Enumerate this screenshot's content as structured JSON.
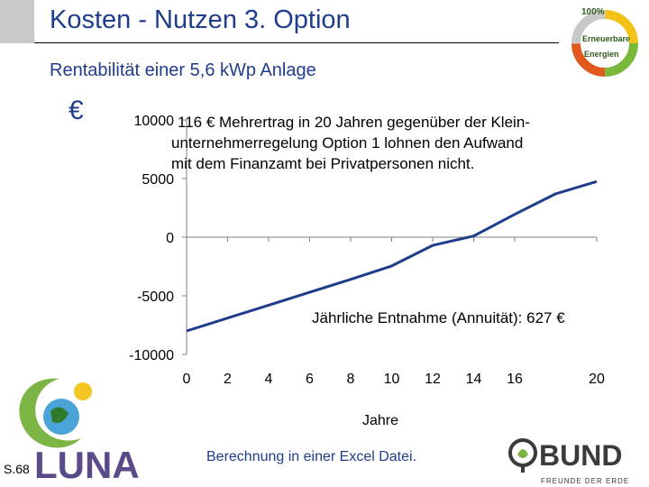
{
  "slide": {
    "title": "Kosten - Nutzen 3. Option",
    "subtitle": "Rentabilität einer 5,6 kWp Anlage",
    "currency_symbol": "€",
    "page_number": "S.68",
    "footer_note": "Berechnung in einer Excel Datei."
  },
  "logos": {
    "renewable": {
      "percent": "100%",
      "line1": "Erneuerbare",
      "line2": "Energien"
    },
    "luna": {
      "text": "LUNA"
    },
    "bund": {
      "text": "BUND",
      "tagline": "FREUNDE DER ERDE"
    }
  },
  "colors": {
    "title": "#1f3d8a",
    "series": "#1f3d8a",
    "grid": "#808080"
  },
  "chart_data": {
    "type": "line",
    "xlabel": "Jahre",
    "ylabel": "€",
    "xlim": [
      0,
      20
    ],
    "ylim": [
      -10000,
      10000
    ],
    "x_ticks": [
      0,
      2,
      4,
      6,
      8,
      10,
      12,
      14,
      16,
      20
    ],
    "y_ticks": [
      10000,
      5000,
      0,
      -5000,
      -10000
    ],
    "x_tick_labels": [
      "0",
      "2",
      "4",
      "6",
      "8",
      "10",
      "12",
      "14",
      "16",
      "20"
    ],
    "y_tick_labels": [
      "10000",
      "5000",
      "0",
      "-5000",
      "-10000"
    ],
    "grid": false,
    "series": [
      {
        "x": [
          0,
          2,
          4,
          6,
          8,
          10,
          12,
          14,
          16,
          18,
          20
        ],
        "values": [
          -8000,
          -6900,
          -5800,
          -4700,
          -3600,
          -2450,
          -700,
          100,
          1950,
          3700,
          4750
        ]
      }
    ],
    "annotations": [
      {
        "id": "top-line-1",
        "text": "116 € Mehrertrag in 20 Jahren gegenüber der Klein-"
      },
      {
        "id": "top-line-2",
        "text": "unternehmerregelung Option 1 lohnen den Aufwand"
      },
      {
        "id": "top-line-3",
        "text": "mit dem Finanzamt bei Privatpersonen nicht."
      },
      {
        "id": "annuity",
        "text": "Jährliche Entnahme (Annuität): 627 €"
      }
    ]
  }
}
